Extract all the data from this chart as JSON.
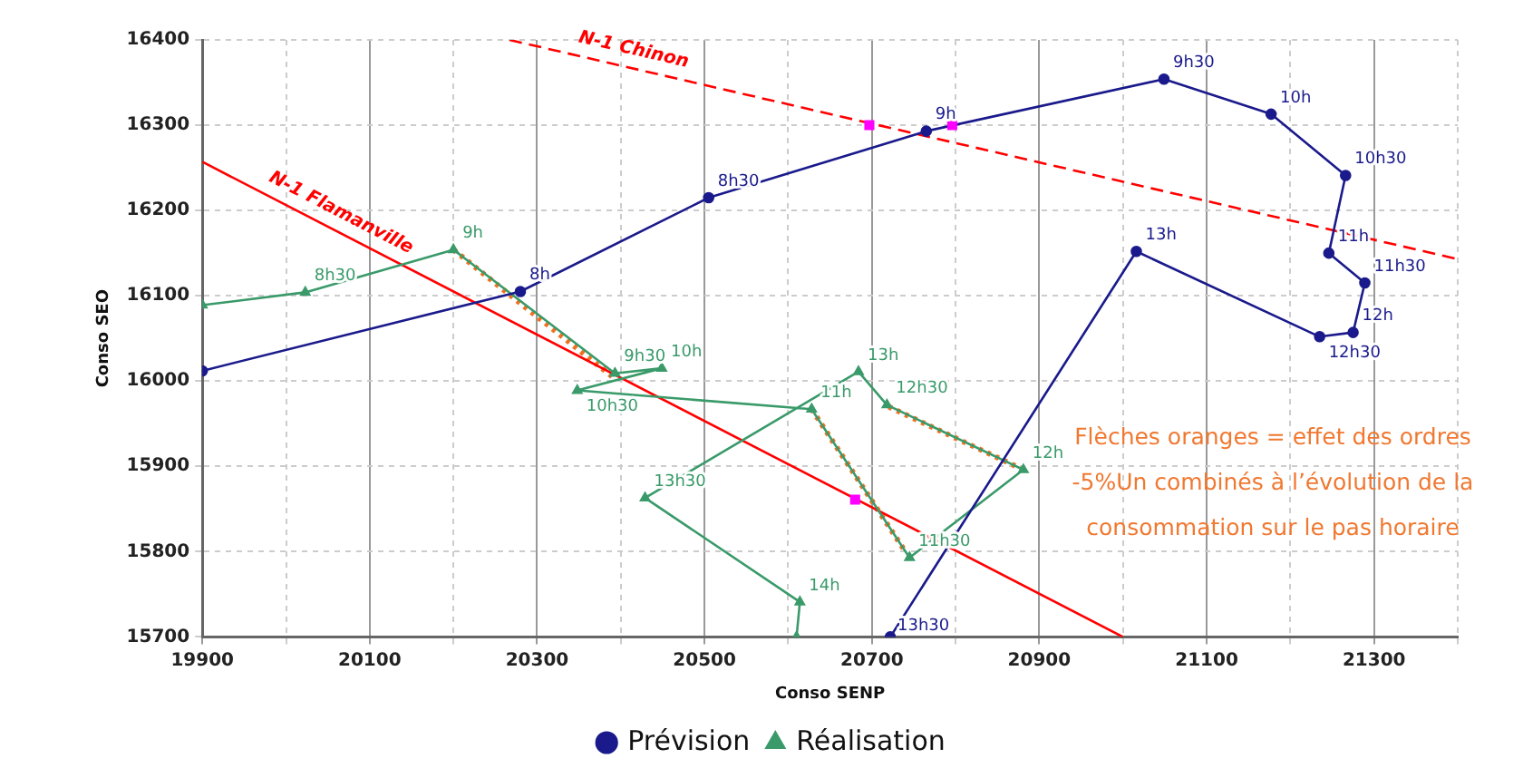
{
  "chart_data": {
    "type": "line",
    "xlabel": "Conso SENP",
    "ylabel": "Conso SEO",
    "xlim": [
      19900,
      21400
    ],
    "xticks": [
      19900,
      {
        "value": 20000,
        "label": null
      },
      20100,
      {
        "value": 20200,
        "label": null
      },
      20300,
      {
        "value": 20400,
        "label": null
      },
      20500,
      {
        "value": 20600,
        "label": null
      },
      20700,
      {
        "value": 20800,
        "label": null
      },
      20900,
      {
        "value": 21000,
        "label": null
      },
      21100,
      {
        "value": 21200,
        "label": null
      },
      21300,
      {
        "value": 21400,
        "label": null
      }
    ],
    "ylim": [
      15700,
      16400
    ],
    "yticks": [
      15700,
      15800,
      15900,
      16000,
      16100,
      16200,
      16300,
      16400
    ],
    "grid": true,
    "legend": "bottom",
    "series": [
      {
        "name": "Prévision",
        "color": "#1a1a8c",
        "marker": "circle",
        "x": [
          19900,
          20280,
          20505,
          20765,
          21049,
          21177,
          21266,
          21246,
          21289,
          21275,
          21235,
          21016,
          20722
        ],
        "values": [
          16012,
          16105,
          16215,
          16293,
          16354,
          16313,
          16241,
          16150,
          16115,
          16057,
          16052,
          16152,
          15700
        ]
      },
      {
        "name": "Réalisation",
        "color": "#3a9a6a",
        "marker": "triangle",
        "x": [
          19900,
          20023,
          20200,
          20393,
          20449,
          20348,
          20628,
          20745,
          20881,
          20718,
          20684,
          20429,
          20614,
          20610
        ],
        "values": [
          16089,
          16104,
          16154,
          16009,
          16015,
          15989,
          15967,
          15793,
          15896,
          15972,
          16011,
          15863,
          15741,
          15700
        ]
      },
      {
        "name": "N-1 Flamanville",
        "type": "line",
        "color": "#ff0000",
        "marker": "none",
        "x": [
          19900,
          21000
        ],
        "values": [
          16257,
          15700
        ]
      },
      {
        "name": "N-1 Chinon",
        "type": "line",
        "color": "#ff0000",
        "marker": "none",
        "line_style": "dashed",
        "x": [
          20267,
          21400
        ],
        "values": [
          16400,
          16143
        ]
      },
      {
        "type": "line",
        "color": "#f07020",
        "marker": "none",
        "line_style": "dotted",
        "x": [
          20200,
          20390
        ],
        "values": [
          16154,
          16005
        ]
      },
      {
        "type": "line",
        "color": "#f07020",
        "marker": "none",
        "line_style": "dotted",
        "x": [
          20628,
          20740
        ],
        "values": [
          15967,
          15800
        ]
      },
      {
        "type": "line",
        "color": "#f07020",
        "marker": "none",
        "line_style": "dotted",
        "x": [
          20881,
          20720
        ],
        "values": [
          15896,
          15970
        ]
      },
      {
        "type": "scatter",
        "color": "#ff00ff",
        "marker": "square",
        "x": [
          20697,
          20796,
          20680
        ],
        "values": [
          16300,
          16300,
          15861
        ]
      }
    ],
    "annotations": [
      {
        "text": "8h",
        "x": 20280,
        "y": 16105
      },
      {
        "text": "8h30",
        "x": 20505,
        "y": 16215
      },
      {
        "text": "9h",
        "x": 20765,
        "y": 16293
      },
      {
        "text": "9h30",
        "x": 21049,
        "y": 16354
      },
      {
        "text": "10h",
        "x": 21177,
        "y": 16313
      },
      {
        "text": "10h30",
        "x": 21266,
        "y": 16241
      },
      {
        "text": "11h",
        "x": 21246,
        "y": 16150
      },
      {
        "text": "11h30",
        "x": 21289,
        "y": 16115
      },
      {
        "text": "12h",
        "x": 21275,
        "y": 16057
      },
      {
        "text": "12h30",
        "x": 21235,
        "y": 16052
      },
      {
        "text": "13h",
        "x": 21016,
        "y": 16152
      },
      {
        "text": "13h30",
        "x": 20722,
        "y": 15700
      },
      {
        "text": "8h30",
        "x": 20023,
        "y": 16104
      },
      {
        "text": "9h",
        "x": 20200,
        "y": 16154
      },
      {
        "text": "9h30",
        "x": 20393,
        "y": 16009
      },
      {
        "text": "10h",
        "x": 20449,
        "y": 16015
      },
      {
        "text": "10h30",
        "x": 20348,
        "y": 15989
      },
      {
        "text": "11h",
        "x": 20628,
        "y": 15967
      },
      {
        "text": "11h30",
        "x": 20745,
        "y": 15793
      },
      {
        "text": "12h",
        "x": 20881,
        "y": 15896
      },
      {
        "text": "12h30",
        "x": 20718,
        "y": 15972
      },
      {
        "text": "13h",
        "x": 20684,
        "y": 16011
      },
      {
        "text": "13h30",
        "x": 20429,
        "y": 15863
      },
      {
        "text": "14h",
        "x": 20614,
        "y": 15741
      },
      "Flèches oranges = effet des ordres -5%Un combinés à l’évolution de la consommation sur le pas horaire"
    ]
  }
}
